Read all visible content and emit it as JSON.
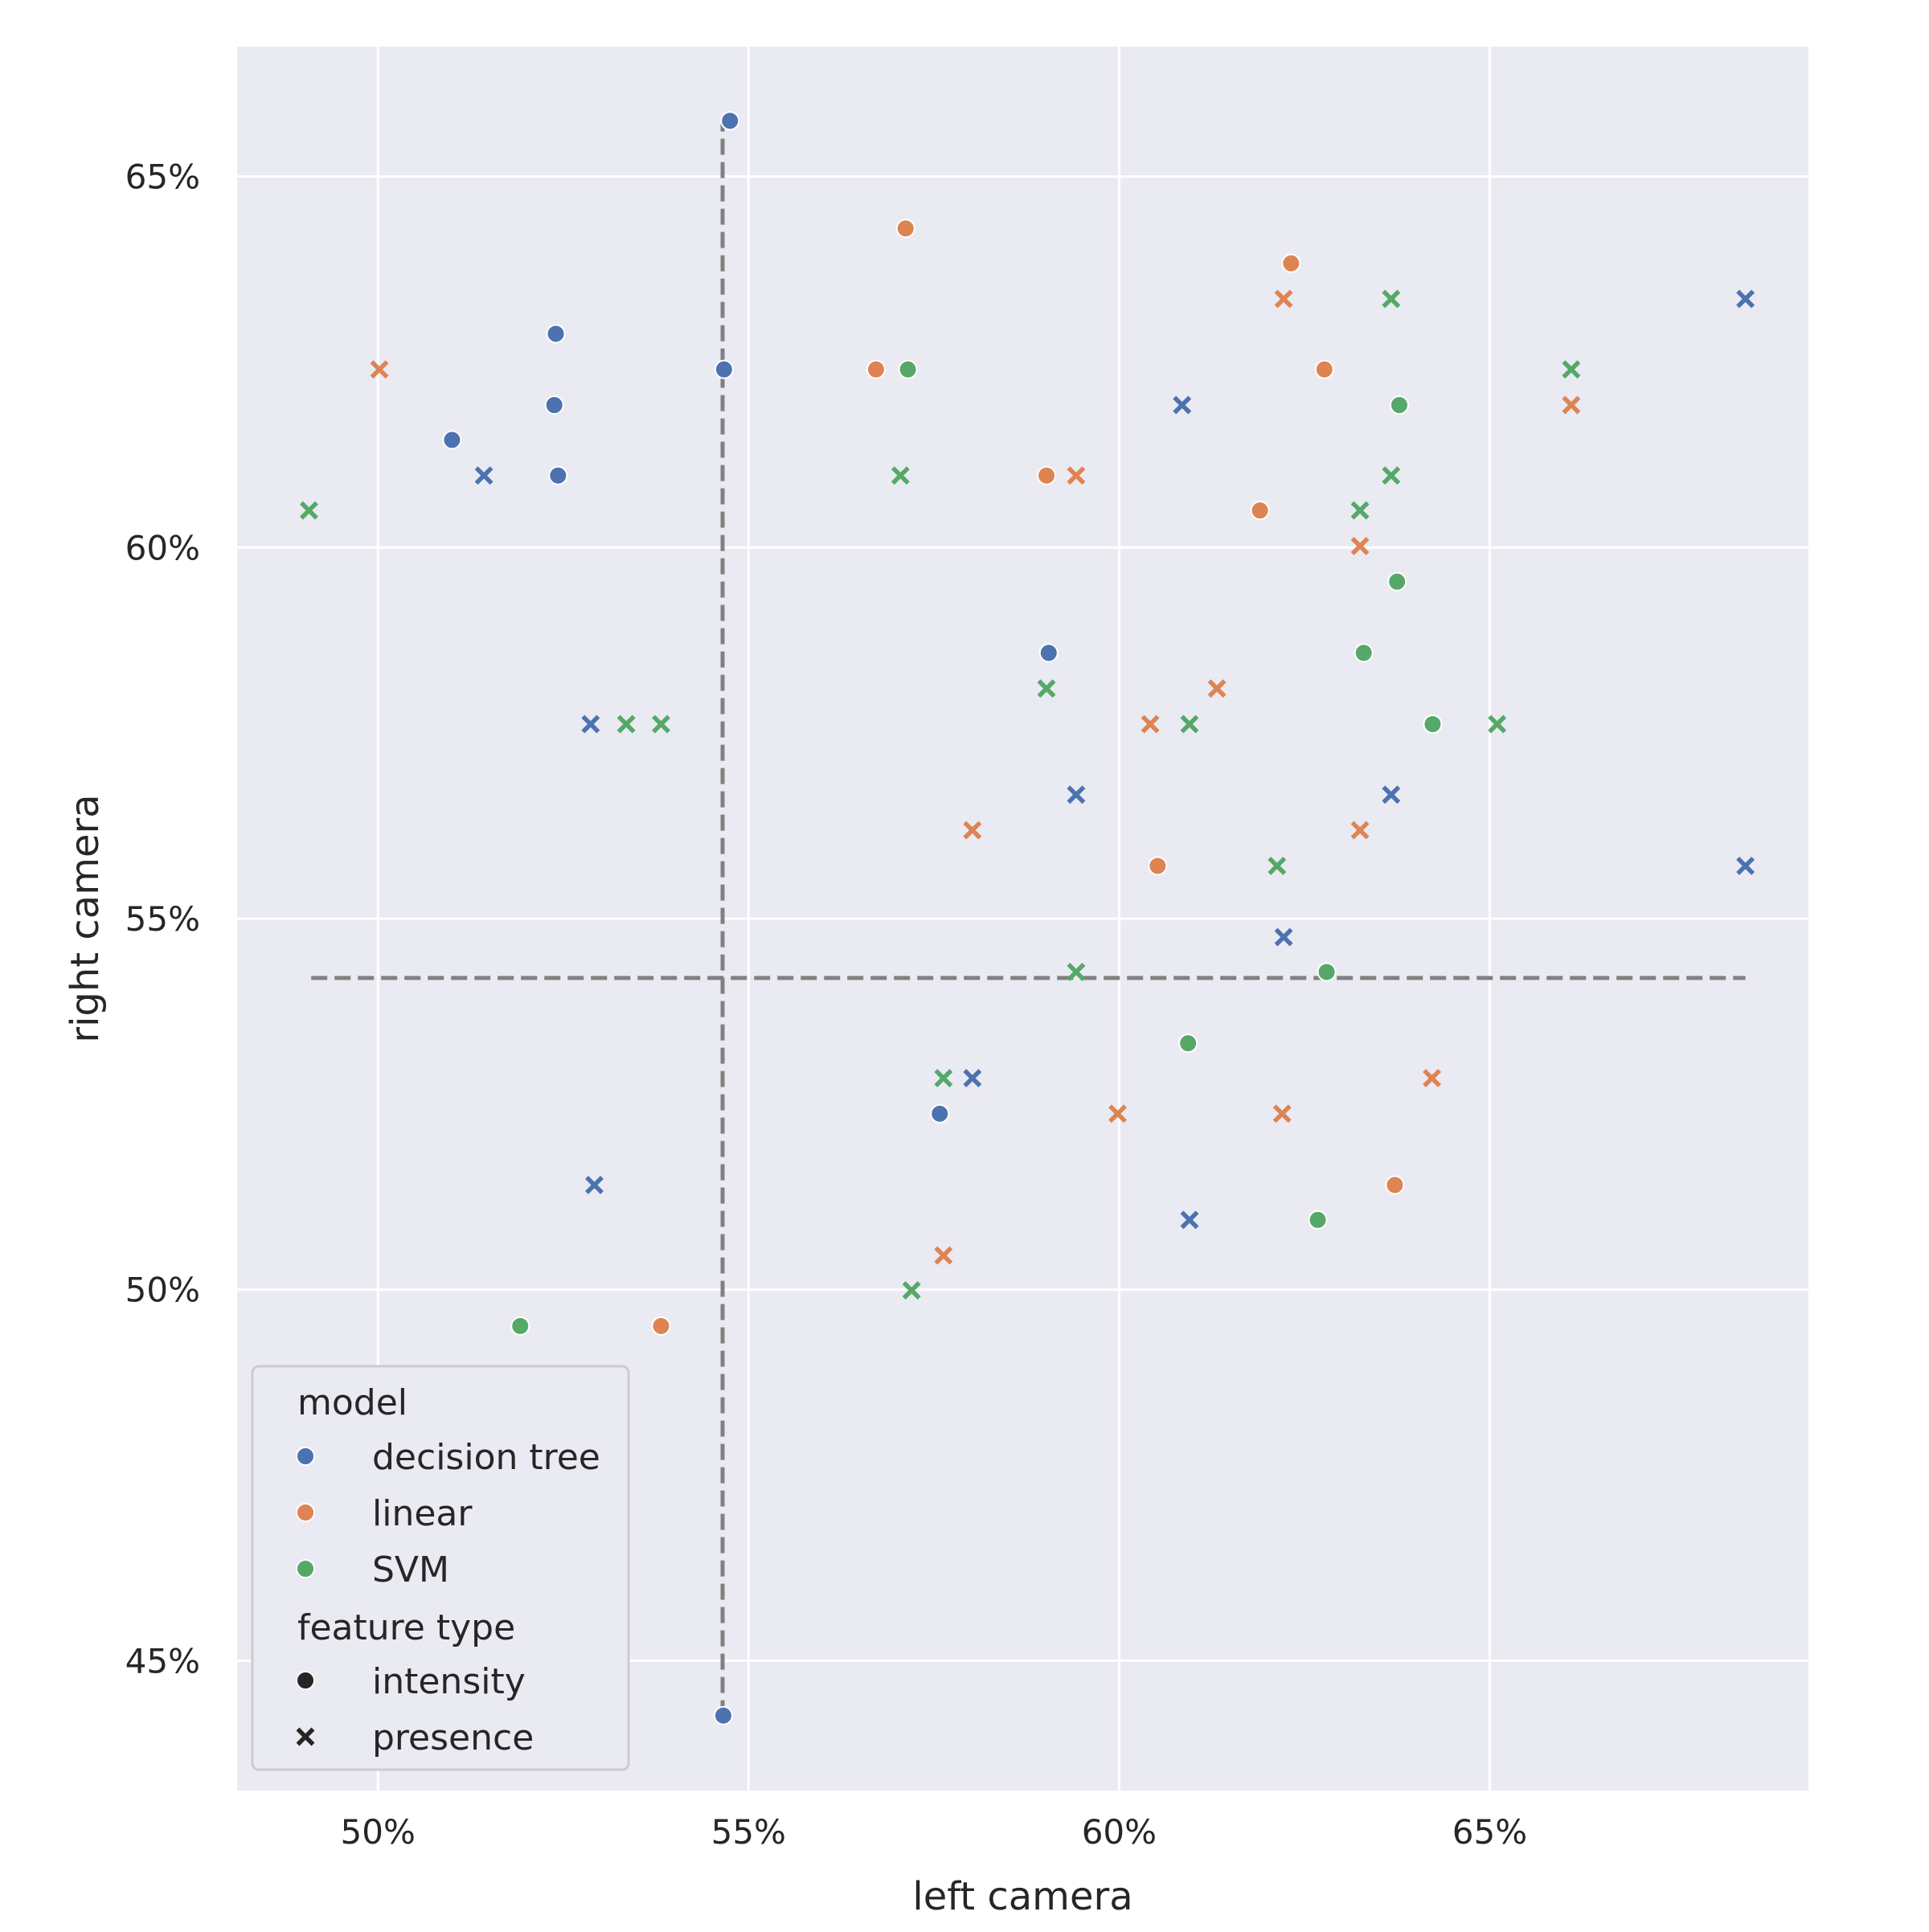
{
  "chart_data": {
    "type": "scatter",
    "xlabel": "left camera",
    "ylabel": "right camera",
    "xlim": [
      0.481,
      0.693
    ],
    "ylim": [
      0.4325,
      0.6675
    ],
    "x_ticks": [
      0.5,
      0.55,
      0.6,
      0.65
    ],
    "x_tick_labels": [
      "50%",
      "55%",
      "60%",
      "65%"
    ],
    "y_ticks": [
      0.45,
      0.5,
      0.55,
      0.6,
      0.65
    ],
    "y_tick_labels": [
      "45%",
      "50%",
      "55%",
      "60%",
      "65%"
    ],
    "grid": true,
    "background": "#eaeaf2",
    "legend_position": "lower-left",
    "legend": {
      "model_title": "model",
      "models": [
        {
          "name": "decision tree",
          "color": "#4c72b0"
        },
        {
          "name": "linear",
          "color": "#dd8452"
        },
        {
          "name": "SVM",
          "color": "#55a868"
        }
      ],
      "feature_title": "feature type",
      "features": [
        {
          "name": "intensity",
          "marker": "circle"
        },
        {
          "name": "presence",
          "marker": "x"
        }
      ]
    },
    "reference_lines": [
      {
        "orientation": "vertical",
        "x": 0.5465,
        "y_from": 0.4425,
        "y_to": 0.6575,
        "style": "dashed",
        "color": "#808080"
      },
      {
        "orientation": "horizontal",
        "y": 0.542,
        "x_from": 0.491,
        "x_to": 0.6845,
        "style": "dashed",
        "color": "#808080"
      }
    ],
    "series": [
      {
        "name": "decision tree",
        "marker": "circle",
        "color": "#4c72b0",
        "points": [
          [
            0.5475,
            0.6575
          ],
          [
            0.5467,
            0.624
          ],
          [
            0.524,
            0.6288
          ],
          [
            0.5238,
            0.6192
          ],
          [
            0.51,
            0.6145
          ],
          [
            0.5243,
            0.6097
          ],
          [
            0.5905,
            0.5858
          ],
          [
            0.5758,
            0.5237
          ],
          [
            0.5466,
            0.4426
          ]
        ]
      },
      {
        "name": "decision tree",
        "marker": "x",
        "color": "#4c72b0",
        "points": [
          [
            0.6845,
            0.6335
          ],
          [
            0.6085,
            0.6192
          ],
          [
            0.5143,
            0.6097
          ],
          [
            0.5287,
            0.5762
          ],
          [
            0.5942,
            0.5667
          ],
          [
            0.6367,
            0.5667
          ],
          [
            0.6845,
            0.5571
          ],
          [
            0.6222,
            0.5475
          ],
          [
            0.5802,
            0.5285
          ],
          [
            0.5292,
            0.5141
          ],
          [
            0.6095,
            0.5094
          ]
        ]
      },
      {
        "name": "linear",
        "marker": "circle",
        "color": "#dd8452",
        "points": [
          [
            0.5712,
            0.643
          ],
          [
            0.6232,
            0.6383
          ],
          [
            0.5672,
            0.624
          ],
          [
            0.6277,
            0.624
          ],
          [
            0.5902,
            0.6097
          ],
          [
            0.619,
            0.605
          ],
          [
            0.6052,
            0.5571
          ],
          [
            0.6372,
            0.5141
          ],
          [
            0.5382,
            0.4951
          ]
        ]
      },
      {
        "name": "linear",
        "marker": "x",
        "color": "#dd8452",
        "points": [
          [
            0.5002,
            0.624
          ],
          [
            0.6222,
            0.6335
          ],
          [
            0.661,
            0.6192
          ],
          [
            0.5942,
            0.6097
          ],
          [
            0.6325,
            0.6002
          ],
          [
            0.6132,
            0.581
          ],
          [
            0.6042,
            0.5762
          ],
          [
            0.5802,
            0.5619
          ],
          [
            0.6325,
            0.5619
          ],
          [
            0.6422,
            0.5285
          ],
          [
            0.5998,
            0.5237
          ],
          [
            0.622,
            0.5237
          ],
          [
            0.5763,
            0.5046
          ]
        ]
      },
      {
        "name": "SVM",
        "marker": "circle",
        "color": "#55a868",
        "points": [
          [
            0.5715,
            0.624
          ],
          [
            0.6378,
            0.6192
          ],
          [
            0.6375,
            0.5954
          ],
          [
            0.633,
            0.5858
          ],
          [
            0.6423,
            0.5762
          ],
          [
            0.628,
            0.5428
          ],
          [
            0.6093,
            0.5332
          ],
          [
            0.6268,
            0.5094
          ],
          [
            0.5192,
            0.4951
          ]
        ]
      },
      {
        "name": "SVM",
        "marker": "x",
        "color": "#55a868",
        "points": [
          [
            0.4907,
            0.605
          ],
          [
            0.6367,
            0.6335
          ],
          [
            0.661,
            0.624
          ],
          [
            0.5705,
            0.6097
          ],
          [
            0.6367,
            0.6097
          ],
          [
            0.6325,
            0.605
          ],
          [
            0.5902,
            0.581
          ],
          [
            0.5335,
            0.5762
          ],
          [
            0.5382,
            0.5762
          ],
          [
            0.6095,
            0.5762
          ],
          [
            0.651,
            0.5762
          ],
          [
            0.6213,
            0.5571
          ],
          [
            0.5942,
            0.5428
          ],
          [
            0.5763,
            0.5285
          ],
          [
            0.572,
            0.4999
          ]
        ]
      }
    ]
  }
}
